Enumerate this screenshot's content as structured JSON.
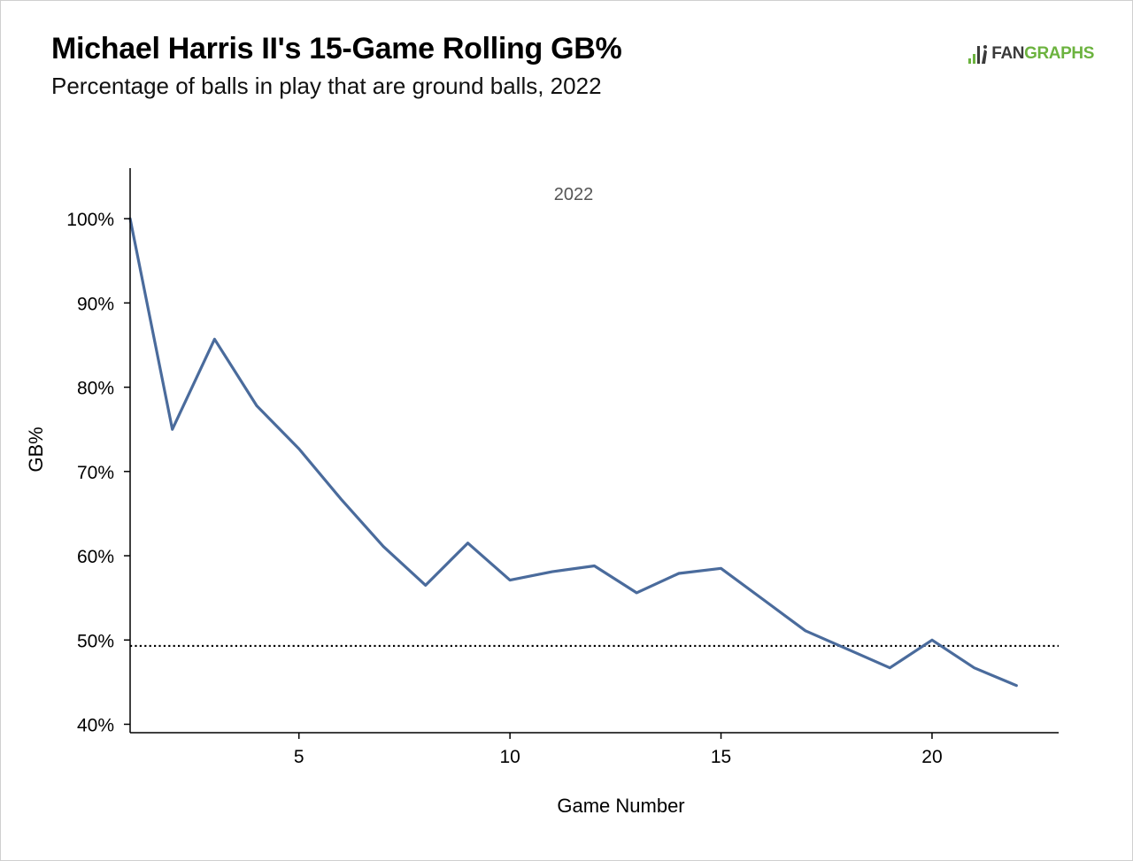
{
  "header": {
    "title": "Michael Harris II's 15-Game Rolling GB%",
    "subtitle": "Percentage of balls in play that are ground balls, 2022"
  },
  "brand": {
    "icon": "fangraphs-logo-icon",
    "text_fan": "FAN",
    "text_graphs": "GRAPHS",
    "color_fan": "#3a3a3a",
    "color_graphs": "#6cb33f"
  },
  "chart_data": {
    "type": "line",
    "panel_label": "2022",
    "xlabel": "Game Number",
    "ylabel": "GB%",
    "xlim": [
      1,
      23
    ],
    "ylim": [
      39,
      106
    ],
    "x_ticks": [
      5,
      10,
      15,
      20
    ],
    "y_ticks": [
      40,
      50,
      60,
      70,
      80,
      90,
      100
    ],
    "y_tick_labels": [
      "40%",
      "50%",
      "60%",
      "70%",
      "80%",
      "90%",
      "100%"
    ],
    "grid": false,
    "line_color": "#4a6b9c",
    "series": [
      {
        "x": [
          1,
          2,
          3,
          4,
          5,
          6,
          7,
          8,
          9,
          10,
          11,
          12,
          13,
          14,
          15,
          16,
          17,
          18,
          19,
          20,
          21,
          22
        ],
        "values": [
          100,
          75.0,
          85.7,
          77.8,
          72.7,
          66.7,
          61.1,
          56.5,
          61.5,
          57.1,
          58.1,
          58.8,
          55.6,
          57.9,
          58.5,
          54.8,
          51.1,
          48.9,
          46.7,
          50.0,
          46.7,
          44.6
        ]
      }
    ],
    "reference_line": {
      "value": 49.3,
      "style": "dotted",
      "color": "#000000"
    }
  }
}
